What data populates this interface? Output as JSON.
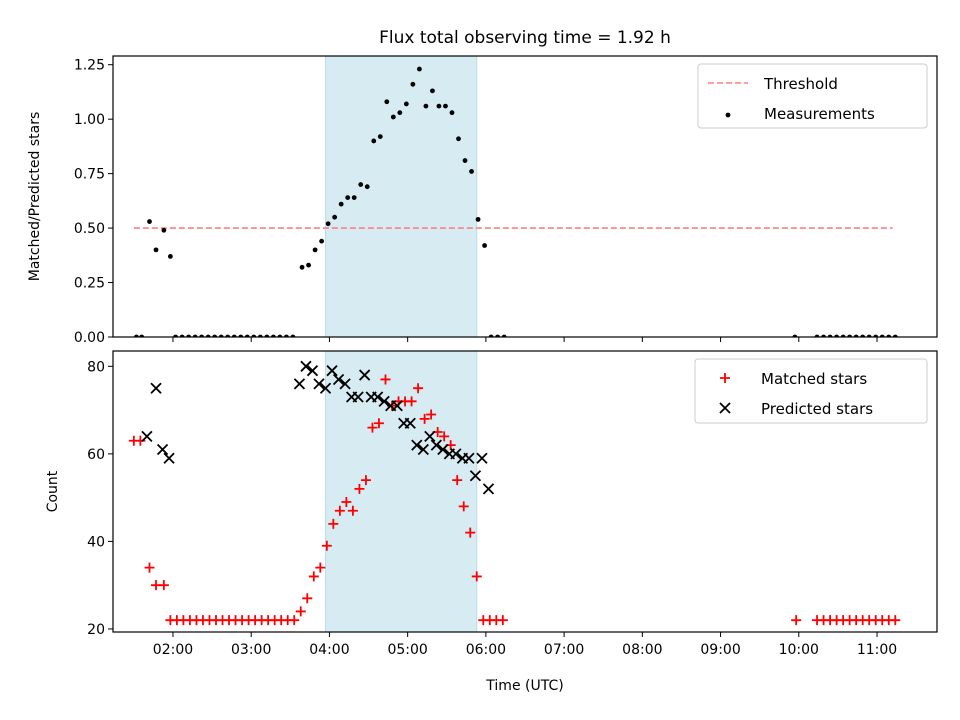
{
  "title": "Flux total observing time = 1.92 h",
  "colors": {
    "threshold": "#ff7f7f",
    "measurement": "#000000",
    "matched": "#ff0000",
    "predicted": "#000000",
    "highlight": "#add8e6"
  },
  "chart_data": [
    {
      "type": "scatter",
      "ylabel": "Matched/Predicted stars",
      "ylim": [
        0,
        1.29
      ],
      "yticks": [
        0,
        0.25,
        0.5,
        0.75,
        1.0,
        1.25
      ],
      "ytick_labels": [
        "0.00",
        "0.25",
        "0.50",
        "0.75",
        "1.00",
        "1.25"
      ],
      "xlim": [
        "01:14",
        "11:46"
      ],
      "highlight_span": [
        "03:57",
        "05:53"
      ],
      "legend_position": "top-right",
      "threshold": {
        "name": "Threshold",
        "value": 0.5,
        "x_range": [
          "01:30",
          "11:12"
        ]
      },
      "series": [
        {
          "name": "Measurements",
          "points": [
            [
              "01:32",
              0
            ],
            [
              "01:36",
              0
            ],
            [
              "01:42",
              0.53
            ],
            [
              "01:47",
              0.4
            ],
            [
              "01:53",
              0.49
            ],
            [
              "01:58",
              0.37
            ],
            [
              "02:02",
              0
            ],
            [
              "02:07",
              0
            ],
            [
              "02:12",
              0
            ],
            [
              "02:17",
              0
            ],
            [
              "02:22",
              0
            ],
            [
              "02:27",
              0
            ],
            [
              "02:32",
              0
            ],
            [
              "02:37",
              0
            ],
            [
              "02:42",
              0
            ],
            [
              "02:47",
              0
            ],
            [
              "02:52",
              0
            ],
            [
              "02:57",
              0
            ],
            [
              "03:02",
              0
            ],
            [
              "03:07",
              0
            ],
            [
              "03:12",
              0
            ],
            [
              "03:17",
              0
            ],
            [
              "03:22",
              0
            ],
            [
              "03:27",
              0
            ],
            [
              "03:32",
              0
            ],
            [
              "03:39",
              0.32
            ],
            [
              "03:44",
              0.33
            ],
            [
              "03:49",
              0.4
            ],
            [
              "03:54",
              0.44
            ],
            [
              "03:59",
              0.52
            ],
            [
              "04:04",
              0.55
            ],
            [
              "04:09",
              0.61
            ],
            [
              "04:14",
              0.64
            ],
            [
              "04:19",
              0.64
            ],
            [
              "04:24",
              0.7
            ],
            [
              "04:29",
              0.69
            ],
            [
              "04:34",
              0.9
            ],
            [
              "04:39",
              0.92
            ],
            [
              "04:44",
              1.08
            ],
            [
              "04:49",
              1.01
            ],
            [
              "04:54",
              1.03
            ],
            [
              "04:59",
              1.07
            ],
            [
              "05:04",
              1.16
            ],
            [
              "05:09",
              1.23
            ],
            [
              "05:14",
              1.06
            ],
            [
              "05:19",
              1.13
            ],
            [
              "05:24",
              1.06
            ],
            [
              "05:29",
              1.06
            ],
            [
              "05:34",
              1.03
            ],
            [
              "05:39",
              0.91
            ],
            [
              "05:44",
              0.81
            ],
            [
              "05:49",
              0.76
            ],
            [
              "05:54",
              0.54
            ],
            [
              "05:59",
              0.42
            ],
            [
              "06:04",
              0
            ],
            [
              "06:09",
              0
            ],
            [
              "06:14",
              0
            ],
            [
              "09:57",
              0
            ],
            [
              "10:14",
              0
            ],
            [
              "10:19",
              0
            ],
            [
              "10:24",
              0
            ],
            [
              "10:29",
              0
            ],
            [
              "10:34",
              0
            ],
            [
              "10:39",
              0
            ],
            [
              "10:44",
              0
            ],
            [
              "10:49",
              0
            ],
            [
              "10:54",
              0
            ],
            [
              "10:59",
              0
            ],
            [
              "11:04",
              0
            ],
            [
              "11:09",
              0
            ],
            [
              "11:14",
              0
            ]
          ]
        }
      ]
    },
    {
      "type": "scatter",
      "xlabel": "Time (UTC)",
      "ylabel": "Count",
      "ylim": [
        19.3,
        83.5
      ],
      "yticks": [
        20,
        40,
        60,
        80
      ],
      "ytick_labels": [
        "20",
        "40",
        "60",
        "80"
      ],
      "xlim": [
        "01:14",
        "11:46"
      ],
      "xticks": [
        "02:00",
        "03:00",
        "04:00",
        "05:00",
        "06:00",
        "07:00",
        "08:00",
        "09:00",
        "10:00",
        "11:00"
      ],
      "highlight_span": [
        "03:57",
        "05:53"
      ],
      "legend_position": "top-right",
      "series": [
        {
          "name": "Matched stars",
          "marker": "plus",
          "points": [
            [
              "01:30",
              63
            ],
            [
              "01:35",
              63
            ],
            [
              "01:42",
              34
            ],
            [
              "01:47",
              30
            ],
            [
              "01:53",
              30
            ],
            [
              "01:58",
              22
            ],
            [
              "02:03",
              22
            ],
            [
              "02:08",
              22
            ],
            [
              "02:13",
              22
            ],
            [
              "02:18",
              22
            ],
            [
              "02:23",
              22
            ],
            [
              "02:28",
              22
            ],
            [
              "02:33",
              22
            ],
            [
              "02:38",
              22
            ],
            [
              "02:43",
              22
            ],
            [
              "02:48",
              22
            ],
            [
              "02:53",
              22
            ],
            [
              "02:58",
              22
            ],
            [
              "03:03",
              22
            ],
            [
              "03:08",
              22
            ],
            [
              "03:13",
              22
            ],
            [
              "03:18",
              22
            ],
            [
              "03:23",
              22
            ],
            [
              "03:28",
              22
            ],
            [
              "03:33",
              22
            ],
            [
              "03:38",
              24
            ],
            [
              "03:43",
              27
            ],
            [
              "03:48",
              32
            ],
            [
              "03:53",
              34
            ],
            [
              "03:58",
              39
            ],
            [
              "04:03",
              44
            ],
            [
              "04:08",
              47
            ],
            [
              "04:13",
              49
            ],
            [
              "04:18",
              47
            ],
            [
              "04:23",
              52
            ],
            [
              "04:28",
              54
            ],
            [
              "04:33",
              66
            ],
            [
              "04:38",
              67
            ],
            [
              "04:43",
              77
            ],
            [
              "04:48",
              71
            ],
            [
              "04:53",
              72
            ],
            [
              "04:58",
              72
            ],
            [
              "05:03",
              72
            ],
            [
              "05:08",
              75
            ],
            [
              "05:13",
              68
            ],
            [
              "05:18",
              69
            ],
            [
              "05:23",
              65
            ],
            [
              "05:28",
              64
            ],
            [
              "05:33",
              62
            ],
            [
              "05:38",
              54
            ],
            [
              "05:43",
              48
            ],
            [
              "05:48",
              42
            ],
            [
              "05:53",
              32
            ],
            [
              "05:58",
              22
            ],
            [
              "06:03",
              22
            ],
            [
              "06:08",
              22
            ],
            [
              "06:13",
              22
            ],
            [
              "09:58",
              22
            ],
            [
              "10:14",
              22
            ],
            [
              "10:19",
              22
            ],
            [
              "10:24",
              22
            ],
            [
              "10:29",
              22
            ],
            [
              "10:34",
              22
            ],
            [
              "10:39",
              22
            ],
            [
              "10:44",
              22
            ],
            [
              "10:49",
              22
            ],
            [
              "10:54",
              22
            ],
            [
              "10:59",
              22
            ],
            [
              "11:04",
              22
            ],
            [
              "11:09",
              22
            ],
            [
              "11:14",
              22
            ]
          ]
        },
        {
          "name": "Predicted stars",
          "marker": "x",
          "points": [
            [
              "01:40",
              64
            ],
            [
              "01:47",
              75
            ],
            [
              "01:52",
              61
            ],
            [
              "01:57",
              59
            ],
            [
              "03:37",
              76
            ],
            [
              "03:42",
              80
            ],
            [
              "03:47",
              79
            ],
            [
              "03:52",
              76
            ],
            [
              "03:57",
              75
            ],
            [
              "04:02",
              79
            ],
            [
              "04:07",
              77
            ],
            [
              "04:12",
              76
            ],
            [
              "04:17",
              73
            ],
            [
              "04:22",
              73
            ],
            [
              "04:27",
              78
            ],
            [
              "04:32",
              73
            ],
            [
              "04:37",
              73
            ],
            [
              "04:42",
              72
            ],
            [
              "04:47",
              71
            ],
            [
              "04:52",
              71
            ],
            [
              "04:57",
              67
            ],
            [
              "05:02",
              67
            ],
            [
              "05:07",
              62
            ],
            [
              "05:12",
              61
            ],
            [
              "05:17",
              64
            ],
            [
              "05:22",
              62
            ],
            [
              "05:27",
              61
            ],
            [
              "05:32",
              60
            ],
            [
              "05:37",
              60
            ],
            [
              "05:42",
              59
            ],
            [
              "05:47",
              59
            ],
            [
              "05:52",
              55
            ],
            [
              "05:57",
              59
            ],
            [
              "06:02",
              52
            ]
          ]
        }
      ]
    }
  ]
}
